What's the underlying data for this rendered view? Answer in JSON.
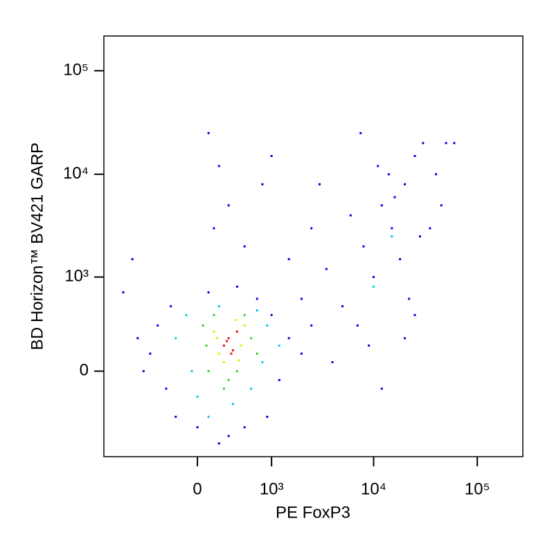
{
  "chart_data": {
    "type": "scatter",
    "x_label": "PE FoxP3",
    "y_label": "BD Horizon™ BV421 GARP",
    "xscale": "biexponential",
    "yscale": "biexponential",
    "xlim": [
      -1570,
      275000
    ],
    "ylim": [
      -820,
      217000
    ],
    "xticks": [
      0,
      {
        "value": 1000,
        "label": "10³"
      },
      {
        "value": 10000,
        "label": "10⁴"
      },
      {
        "value": 100000,
        "label": "10⁵"
      }
    ],
    "yticks": [
      0,
      {
        "value": 1000,
        "label": "10³"
      },
      {
        "value": 10000,
        "label": "10⁴"
      },
      {
        "value": 100000,
        "label": "10⁵"
      }
    ],
    "series": [
      {
        "color": "#0000e0",
        "x": [
          -500,
          -400,
          -300,
          -600,
          -250,
          1000,
          1200,
          1500,
          900,
          0,
          300,
          500,
          -200,
          100,
          400,
          700,
          2000,
          2500,
          -700,
          200,
          150,
          300,
          500,
          800,
          1000,
          200,
          -800,
          -1000,
          1500,
          2500,
          3000,
          2000,
          100,
          5000,
          8000,
          12000,
          15000,
          20000,
          25000,
          30000,
          10000,
          7000,
          18000,
          40000,
          50000,
          6000,
          14000,
          22000,
          35000,
          9000,
          12000,
          4000,
          25000,
          60000,
          16000,
          11000,
          28000,
          45000,
          7500,
          3500,
          20000
        ],
        "y": [
          100,
          300,
          -100,
          0,
          500,
          400,
          -50,
          200,
          -300,
          -400,
          -500,
          -400,
          -300,
          700,
          800,
          600,
          100,
          300,
          200,
          -600,
          3000,
          5000,
          2000,
          8000,
          15000,
          12000,
          1500,
          700,
          1500,
          3000,
          8000,
          600,
          25000,
          500,
          2000,
          5000,
          3000,
          8000,
          15000,
          20000,
          1000,
          300,
          1500,
          10000,
          20000,
          4000,
          10000,
          600,
          3000,
          150,
          -100,
          50,
          400,
          20000,
          6000,
          12000,
          2500,
          5000,
          25000,
          1200,
          200
        ]
      },
      {
        "color": "#00c8e8",
        "x": [
          -200,
          -100,
          800,
          900,
          0,
          350,
          600,
          200,
          -50,
          700,
          1200,
          100,
          15000,
          10000
        ],
        "y": [
          200,
          400,
          50,
          300,
          -150,
          -200,
          -100,
          500,
          0,
          450,
          150,
          -300,
          2500,
          800
        ]
      },
      {
        "color": "#30d030",
        "x": [
          50,
          100,
          600,
          700,
          150,
          300,
          500,
          250,
          80,
          400
        ],
        "y": [
          300,
          0,
          200,
          100,
          400,
          -50,
          400,
          -100,
          150,
          0
        ]
      },
      {
        "color": "#e8e800",
        "x": [
          150,
          200,
          450,
          500,
          250,
          380,
          420,
          180
        ],
        "y": [
          250,
          100,
          150,
          300,
          50,
          350,
          60,
          200
        ]
      },
      {
        "color": "#e01010",
        "x": [
          250,
          300,
          350,
          400,
          280,
          330
        ],
        "y": [
          150,
          200,
          120,
          250,
          180,
          100
        ]
      }
    ]
  }
}
